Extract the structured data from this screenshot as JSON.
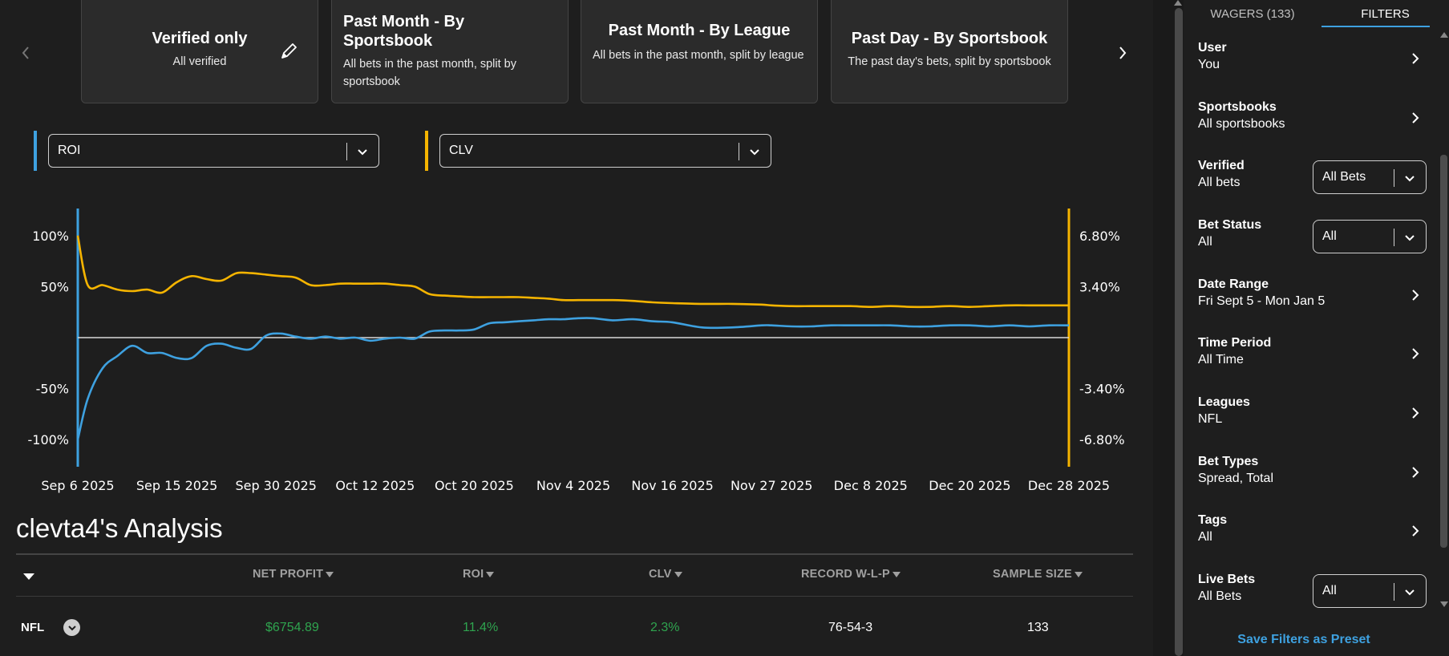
{
  "presets": [
    {
      "title": "Verified only",
      "description": "All verified"
    },
    {
      "title": "Past Month - By Sportsbook",
      "description": "All bets in the past month, split by sportsbook"
    },
    {
      "title": "Past Month - By League",
      "description": "All bets in the past month, split by league"
    },
    {
      "title": "Past Day - By Sportsbook",
      "description": "The past day's bets, split by sportsbook"
    }
  ],
  "metrics": {
    "left": {
      "value": "ROI",
      "color": "#3ea1e0"
    },
    "right": {
      "value": "CLV",
      "color": "#f5b400"
    }
  },
  "chart_data": {
    "type": "line",
    "x_tick_labels": [
      "Sep 6 2025",
      "Sep 15 2025",
      "Sep 30 2025",
      "Oct 12 2025",
      "Oct 20 2025",
      "Nov 4 2025",
      "Nov 16 2025",
      "Nov 27 2025",
      "Dec 8 2025",
      "Dec 20 2025",
      "Dec 28 2025"
    ],
    "left_axis": {
      "ticks": [
        100,
        50,
        -50,
        -100
      ],
      "tick_labels": [
        "100%",
        "50%",
        "-50%",
        "-100%"
      ],
      "ylim": [
        -125,
        125
      ]
    },
    "right_axis": {
      "ticks": [
        6.8,
        3.4,
        -3.4,
        -6.8
      ],
      "tick_labels": [
        "6.80%",
        "3.40%",
        "-3.40%",
        "-6.80%"
      ],
      "ylim": [
        -8.5,
        8.5
      ]
    },
    "series": [
      {
        "name": "ROI",
        "axis": "left",
        "color": "#3ea1e0",
        "x": [
          0,
          0.01,
          0.025,
          0.04,
          0.055,
          0.07,
          0.085,
          0.1,
          0.115,
          0.13,
          0.145,
          0.16,
          0.175,
          0.19,
          0.205,
          0.22,
          0.235,
          0.25,
          0.265,
          0.28,
          0.295,
          0.31,
          0.325,
          0.34,
          0.355,
          0.37,
          0.385,
          0.4,
          0.415,
          0.43,
          0.445,
          0.46,
          0.475,
          0.49,
          0.505,
          0.52,
          0.54,
          0.56,
          0.58,
          0.6,
          0.63,
          0.66,
          0.69,
          0.7,
          0.72,
          0.74,
          0.76,
          0.78,
          0.8,
          0.82,
          0.84,
          0.86,
          0.88,
          0.9,
          0.92,
          0.94,
          0.96,
          0.98,
          1.0
        ],
        "values": [
          -100,
          -60,
          -30,
          -18,
          -8,
          -15,
          -15,
          -20,
          -20,
          -8,
          -6,
          -10,
          -11,
          2,
          4,
          1,
          -1,
          1,
          -1,
          0,
          -3,
          -1,
          0,
          -1,
          6,
          7,
          7,
          8,
          14,
          15,
          16,
          17,
          18,
          18,
          19,
          19,
          17,
          18,
          16,
          15,
          10,
          10,
          12,
          12,
          11,
          11,
          12,
          12,
          12,
          12,
          11,
          11,
          12,
          12,
          11,
          12,
          11,
          12,
          12
        ]
      },
      {
        "name": "CLV",
        "axis": "right",
        "color": "#f5b400",
        "x": [
          0,
          0.01,
          0.025,
          0.04,
          0.055,
          0.07,
          0.085,
          0.1,
          0.115,
          0.13,
          0.145,
          0.16,
          0.175,
          0.19,
          0.205,
          0.22,
          0.235,
          0.25,
          0.265,
          0.28,
          0.295,
          0.31,
          0.325,
          0.34,
          0.355,
          0.37,
          0.385,
          0.4,
          0.415,
          0.43,
          0.445,
          0.46,
          0.475,
          0.49,
          0.505,
          0.52,
          0.54,
          0.56,
          0.58,
          0.6,
          0.63,
          0.66,
          0.69,
          0.7,
          0.72,
          0.74,
          0.76,
          0.78,
          0.8,
          0.82,
          0.84,
          0.86,
          0.88,
          0.9,
          0.92,
          0.94,
          0.96,
          0.98,
          1.0
        ],
        "values": [
          6.8,
          3.5,
          3.5,
          3.2,
          3.1,
          3.2,
          3.0,
          3.7,
          4.1,
          3.9,
          3.8,
          4.3,
          4.3,
          4.2,
          4.1,
          4.0,
          3.5,
          3.5,
          3.6,
          3.6,
          3.6,
          3.6,
          3.5,
          3.4,
          2.9,
          2.8,
          2.75,
          2.7,
          2.7,
          2.7,
          2.7,
          2.65,
          2.6,
          2.5,
          2.5,
          2.5,
          2.5,
          2.45,
          2.35,
          2.3,
          2.25,
          2.25,
          2.2,
          2.15,
          2.1,
          2.1,
          2.1,
          2.1,
          2.05,
          2.1,
          2.05,
          2.05,
          2.1,
          2.05,
          2.1,
          2.15,
          2.15,
          2.15,
          2.15
        ]
      }
    ],
    "zero_line": true
  },
  "analysis": {
    "title": "clevta4's Analysis",
    "columns": [
      "NET PROFIT",
      "ROI",
      "CLV",
      "RECORD W-L-P",
      "SAMPLE SIZE"
    ],
    "rows": [
      {
        "group": "NFL",
        "net_profit": "$6754.89",
        "roi": "11.4%",
        "clv": "2.3%",
        "record": "76-54-3",
        "sample_size": "133"
      }
    ]
  },
  "sidebar": {
    "tabs": {
      "wagers": "WAGERS (133)",
      "filters": "FILTERS"
    },
    "filters": [
      {
        "label": "User",
        "value": "You",
        "control": "chevron"
      },
      {
        "label": "Sportsbooks",
        "value": "All sportsbooks",
        "control": "chevron"
      },
      {
        "label": "Verified",
        "value": "All bets",
        "control": "select",
        "selected": "All Bets"
      },
      {
        "label": "Bet Status",
        "value": "All",
        "control": "select",
        "selected": "All"
      },
      {
        "label": "Date Range",
        "value": "Fri Sept 5 - Mon Jan 5",
        "control": "chevron"
      },
      {
        "label": "Time Period",
        "value": "All Time",
        "control": "chevron"
      },
      {
        "label": "Leagues",
        "value": "NFL",
        "control": "chevron"
      },
      {
        "label": "Bet Types",
        "value": "Spread, Total",
        "control": "chevron"
      },
      {
        "label": "Tags",
        "value": "All",
        "control": "chevron"
      },
      {
        "label": "Live Bets",
        "value": "All Bets",
        "control": "select",
        "selected": "All"
      }
    ],
    "save_preset": "Save Filters as Preset"
  }
}
